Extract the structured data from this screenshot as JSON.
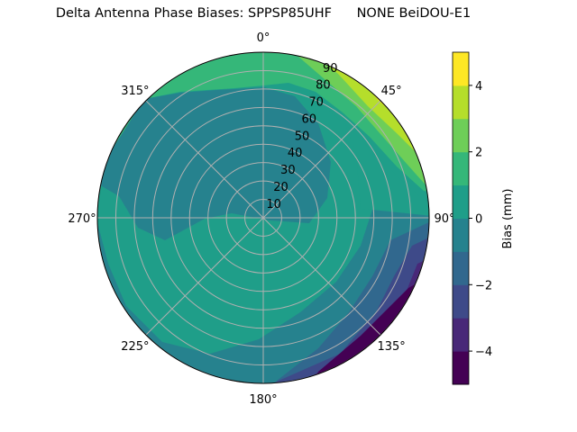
{
  "chart_data": {
    "type": "polar-contour",
    "title": "Delta Antenna Phase Biases: SPPSP85UHF      NONE BeiDOU-E1",
    "angular_ticks": [
      "0°",
      "45°",
      "90°",
      "135°",
      "180°",
      "225°",
      "270°",
      "315°"
    ],
    "angular_direction": "clockwise, 0° at top",
    "radial_ticks": [
      "10",
      "20",
      "30",
      "40",
      "50",
      "60",
      "70",
      "80",
      "90"
    ],
    "radial_range": [
      0,
      90
    ],
    "grid": true,
    "colorbar": {
      "label": "Bias (mm)",
      "levels": [
        -5,
        -4,
        -3,
        -2,
        -1,
        0,
        1,
        2,
        3,
        4,
        5
      ],
      "ticks": [
        "−4",
        "−2",
        "0",
        "2",
        "4"
      ],
      "tick_values": [
        -4,
        -2,
        0,
        2,
        4
      ],
      "colors": [
        "#440154",
        "#482878",
        "#3e4a89",
        "#31688e",
        "#26828e",
        "#1f9e89",
        "#35b779",
        "#6ece58",
        "#b5de2b",
        "#fde725"
      ],
      "colormap": "viridis",
      "placement": "right"
    },
    "regions": [
      {
        "range": [
          0,
          1
        ],
        "where": "most of the southern and western sky"
      },
      {
        "range": [
          -1,
          0
        ],
        "where": "center/north-west and the rim"
      },
      {
        "range": [
          1,
          5
        ],
        "where": "north-east rim, increasing toward azimuth ~45°"
      },
      {
        "range": [
          -5,
          -1
        ],
        "where": "south-east rim, decreasing toward azimuth ~150°"
      }
    ]
  }
}
